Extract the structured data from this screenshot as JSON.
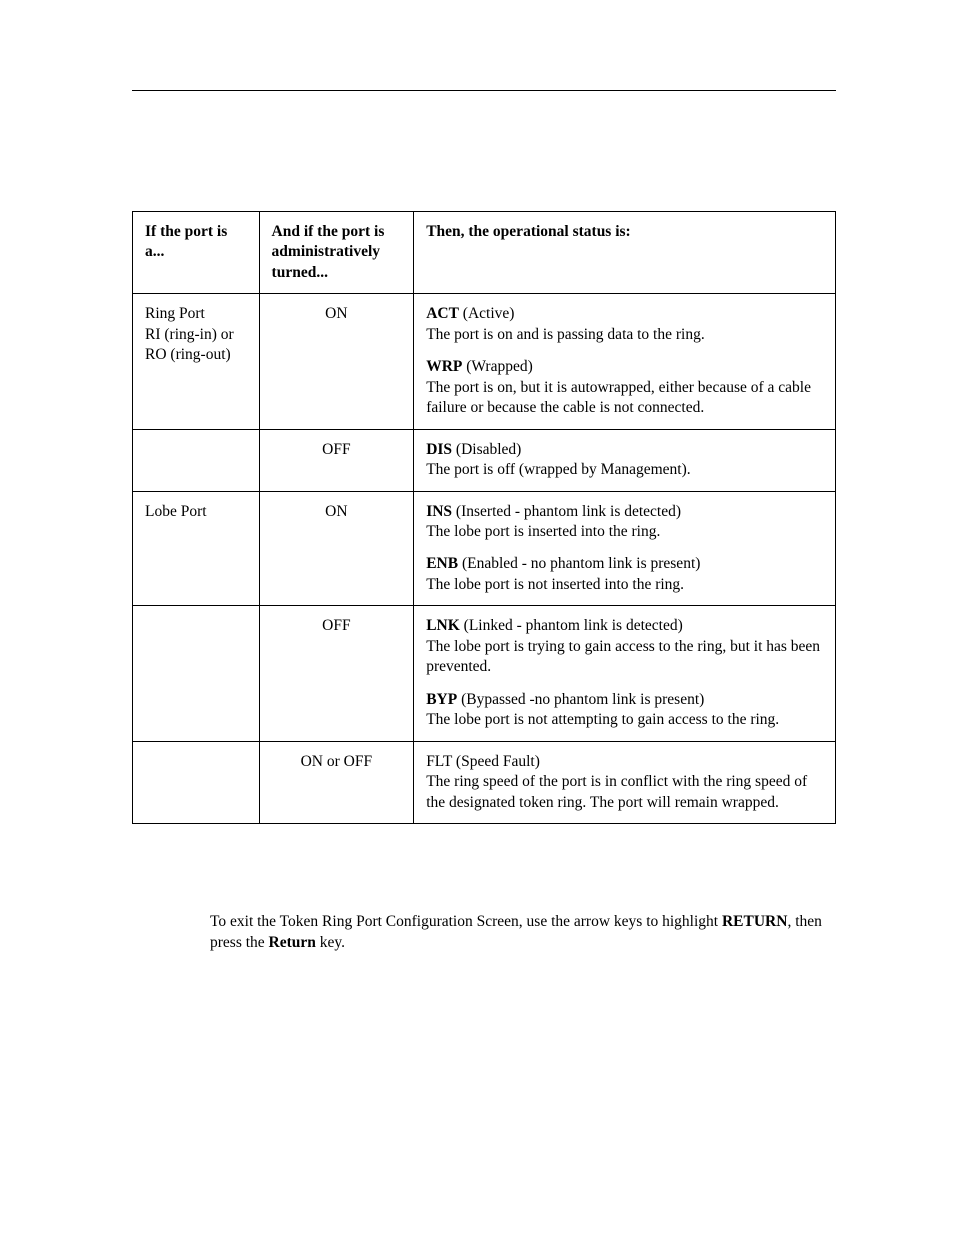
{
  "table": {
    "headers": {
      "col_a": "If the port is a...",
      "col_b": "And if the port is administratively turned...",
      "col_c": "Then, the operational status is:"
    },
    "rows": [
      {
        "port_type_lines": [
          "Ring Port",
          "RI (ring-in) or",
          "RO (ring-out)"
        ],
        "admin": "ON",
        "statuses": [
          {
            "code": "ACT",
            "code_bold": true,
            "expansion": " (Active)",
            "desc": "The port is on and is passing data to the ring."
          },
          {
            "code": "WRP",
            "code_bold": true,
            "expansion": " (Wrapped)",
            "desc": "The port is on, but it is autowrapped, either because of a cable failure or because the cable is not connected."
          }
        ]
      },
      {
        "port_type_lines": [],
        "admin": "OFF",
        "statuses": [
          {
            "code": "DIS",
            "code_bold": true,
            "expansion": " (Disabled)",
            "desc": "The port is off (wrapped by Management)."
          }
        ]
      },
      {
        "port_type_lines": [
          "Lobe Port"
        ],
        "admin": "ON",
        "statuses": [
          {
            "code": "INS",
            "code_bold": true,
            "expansion": " (Inserted - phantom link is detected)",
            "desc": "The lobe port is inserted into the ring."
          },
          {
            "code": "ENB",
            "code_bold": true,
            "expansion": " (Enabled - no phantom link is present)",
            "desc": "The lobe port is not inserted into the ring."
          }
        ]
      },
      {
        "port_type_lines": [],
        "admin": "OFF",
        "statuses": [
          {
            "code": "LNK",
            "code_bold": true,
            "expansion": " (Linked - phantom link is detected)",
            "desc": "The lobe port is trying to gain access to the ring, but it has been prevented."
          },
          {
            "code": "BYP",
            "code_bold": true,
            "expansion": " (Bypassed -no phantom link is present)",
            "desc": "The lobe port is not attempting to gain access to the ring."
          }
        ]
      },
      {
        "port_type_lines": [],
        "admin": "ON or OFF",
        "statuses": [
          {
            "code": "FLT",
            "code_bold": false,
            "expansion": " (Speed Fault)",
            "desc": "The ring speed of the port is in conflict with the ring speed of the designated token ring. The port will remain wrapped."
          }
        ]
      }
    ]
  },
  "body": {
    "pre": "To exit the Token Ring Port Configuration Screen, use the arrow keys to highlight ",
    "kw1": "RETURN",
    "mid": ", then press the ",
    "kw2": "Return",
    "post": " key."
  }
}
